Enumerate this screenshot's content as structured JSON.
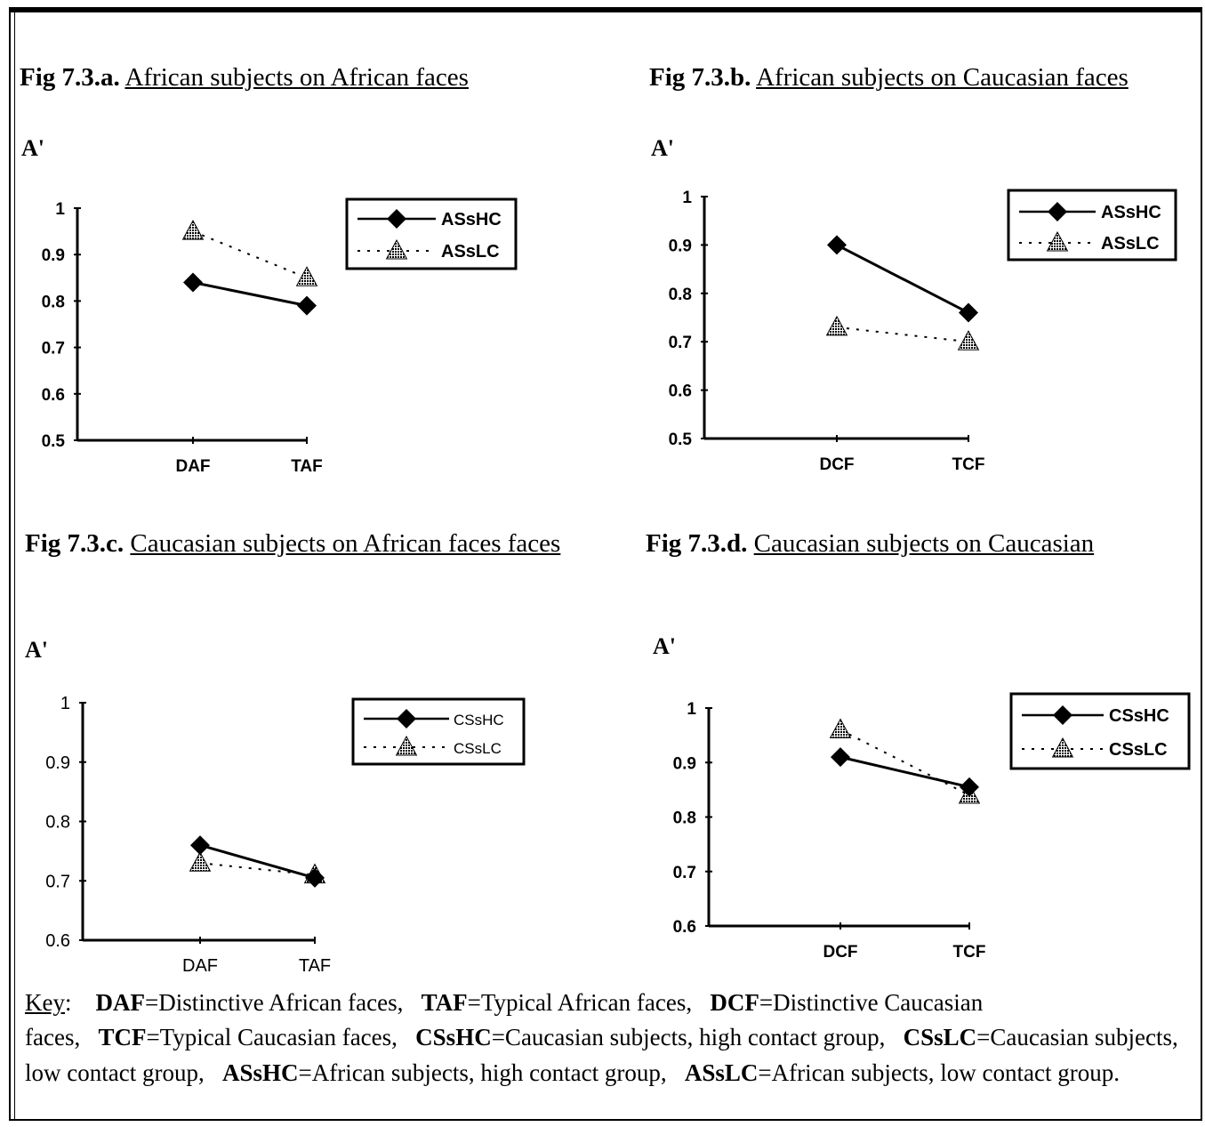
{
  "charts": [
    {
      "fig_label": "Fig 7.3.a.",
      "fig_title": "African subjects on African faces",
      "ylabel": "A'"
    },
    {
      "fig_label": "Fig 7.3.b.",
      "fig_title": "African subjects on Caucasian faces",
      "ylabel": "A'"
    },
    {
      "fig_label": "Fig 7.3.c.",
      "fig_title": "Caucasian subjects on African faces faces",
      "ylabel": "A'"
    },
    {
      "fig_label": "Fig 7.3.d.",
      "fig_title": "Caucasian subjects on Caucasian",
      "ylabel": "A'"
    }
  ],
  "chart_data": [
    {
      "type": "line",
      "title": "African subjects on African faces",
      "ylabel": "A'",
      "categories": [
        "DAF",
        "TAF"
      ],
      "ylim": [
        0.5,
        1
      ],
      "yticks": [
        "0.5",
        "0.6",
        "0.7",
        "0.8",
        "0.9",
        "1"
      ],
      "legend": "top-right",
      "series": [
        {
          "name": "ASsHC",
          "values": [
            0.84,
            0.79
          ],
          "marker": "diamond",
          "style": "solid"
        },
        {
          "name": "ASsLC",
          "values": [
            0.95,
            0.85
          ],
          "marker": "triangle",
          "style": "dotted"
        }
      ]
    },
    {
      "type": "line",
      "title": "African subjects on Caucasian faces",
      "ylabel": "A'",
      "categories": [
        "DCF",
        "TCF"
      ],
      "ylim": [
        0.5,
        1
      ],
      "yticks": [
        "0.5",
        "0.6",
        "0.7",
        "0.8",
        "0.9",
        "1"
      ],
      "legend": "top-right",
      "series": [
        {
          "name": "ASsHC",
          "values": [
            0.9,
            0.76
          ],
          "marker": "diamond",
          "style": "solid"
        },
        {
          "name": "ASsLC",
          "values": [
            0.73,
            0.7
          ],
          "marker": "triangle",
          "style": "dotted"
        }
      ]
    },
    {
      "type": "line",
      "title": "Caucasian subjects on African faces",
      "ylabel": "A'",
      "categories": [
        "DAF",
        "TAF"
      ],
      "ylim": [
        0.6,
        1
      ],
      "yticks": [
        "0.6",
        "0.7",
        "0.8",
        "0.9",
        "1"
      ],
      "legend": "top-right",
      "series": [
        {
          "name": "CSsHC",
          "values": [
            0.76,
            0.705
          ],
          "marker": "diamond",
          "style": "solid"
        },
        {
          "name": "CSsLC",
          "values": [
            0.73,
            0.71
          ],
          "marker": "triangle",
          "style": "dotted"
        }
      ]
    },
    {
      "type": "line",
      "title": "Caucasian subjects on Caucasian",
      "ylabel": "A'",
      "categories": [
        "DCF",
        "TCF"
      ],
      "ylim": [
        0.6,
        1
      ],
      "yticks": [
        "0.6",
        "0.7",
        "0.8",
        "0.9",
        "1"
      ],
      "legend": "top-right",
      "series": [
        {
          "name": "CSsHC",
          "values": [
            0.91,
            0.855
          ],
          "marker": "diamond",
          "style": "solid"
        },
        {
          "name": "CSsLC",
          "values": [
            0.96,
            0.84
          ],
          "marker": "triangle",
          "style": "dotted"
        }
      ]
    }
  ],
  "key": {
    "label": "Key",
    "entries": [
      {
        "abbr": "DAF",
        "text": "=Distinctive African faces,"
      },
      {
        "abbr": "TAF",
        "text": "=Typical African faces,"
      },
      {
        "abbr": "DCF",
        "text": "=Distinctive Caucasian faces,"
      },
      {
        "abbr": "TCF",
        "text": "=Typical Caucasian faces,"
      },
      {
        "abbr": "CSsHC",
        "text": "=Caucasian subjects, high contact group,"
      },
      {
        "abbr": "CSsLC",
        "text": "=Caucasian subjects, low contact group,"
      },
      {
        "abbr": "ASsHC",
        "text": "=African subjects, high contact group,"
      },
      {
        "abbr": "ASsLC",
        "text": "=African subjects, low contact group."
      }
    ]
  }
}
